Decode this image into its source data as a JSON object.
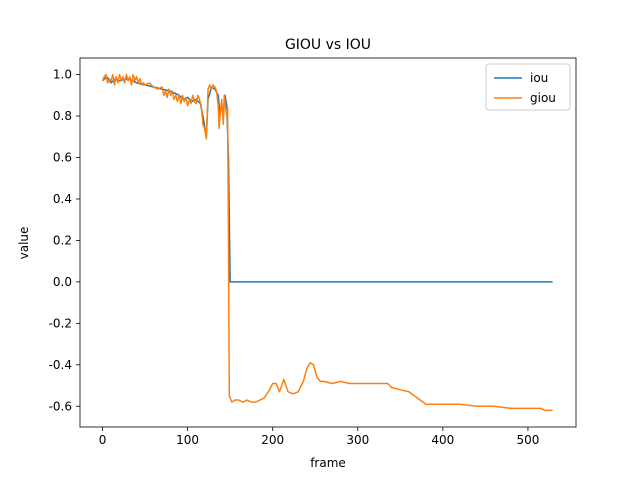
{
  "chart_data": {
    "type": "line",
    "title": "GIOU vs IOU",
    "xlabel": "frame",
    "ylabel": "value",
    "xlim": [
      -26.5,
      556.5
    ],
    "ylim": [
      -0.7,
      1.08
    ],
    "xticks": [
      0,
      100,
      200,
      300,
      400,
      500
    ],
    "yticks": [
      -0.6,
      -0.4,
      -0.2,
      0.0,
      0.2,
      0.4,
      0.6,
      0.8,
      1.0
    ],
    "grid": false,
    "legend_position": "top-right",
    "series": [
      {
        "name": "iou",
        "color": "#1f77b4",
        "points": [
          [
            0,
            0.97
          ],
          [
            5,
            0.99
          ],
          [
            10,
            0.96
          ],
          [
            15,
            0.98
          ],
          [
            20,
            0.97
          ],
          [
            30,
            0.98
          ],
          [
            40,
            0.96
          ],
          [
            50,
            0.95
          ],
          [
            60,
            0.94
          ],
          [
            70,
            0.93
          ],
          [
            80,
            0.92
          ],
          [
            90,
            0.9
          ],
          [
            95,
            0.88
          ],
          [
            100,
            0.89
          ],
          [
            105,
            0.87
          ],
          [
            110,
            0.88
          ],
          [
            115,
            0.86
          ],
          [
            118,
            0.8
          ],
          [
            120,
            0.75
          ],
          [
            122,
            0.7
          ],
          [
            124,
            0.88
          ],
          [
            128,
            0.94
          ],
          [
            132,
            0.93
          ],
          [
            136,
            0.9
          ],
          [
            138,
            0.8
          ],
          [
            140,
            0.86
          ],
          [
            142,
            0.82
          ],
          [
            144,
            0.9
          ],
          [
            146,
            0.85
          ],
          [
            148,
            0.6
          ],
          [
            150,
            0.0
          ],
          [
            200,
            0.0
          ],
          [
            300,
            0.0
          ],
          [
            400,
            0.0
          ],
          [
            529,
            0.0
          ]
        ]
      },
      {
        "name": "giou",
        "color": "#ff7f0e",
        "points": [
          [
            0,
            0.97
          ],
          [
            2,
            0.99
          ],
          [
            4,
            1.0
          ],
          [
            6,
            0.96
          ],
          [
            8,
            0.98
          ],
          [
            10,
            0.97
          ],
          [
            12,
            1.0
          ],
          [
            14,
            0.95
          ],
          [
            16,
            0.99
          ],
          [
            18,
            0.96
          ],
          [
            20,
            1.0
          ],
          [
            22,
            0.97
          ],
          [
            24,
            0.99
          ],
          [
            26,
            0.96
          ],
          [
            28,
            1.0
          ],
          [
            30,
            0.97
          ],
          [
            32,
            0.99
          ],
          [
            34,
            0.95
          ],
          [
            36,
            1.0
          ],
          [
            38,
            0.97
          ],
          [
            40,
            0.99
          ],
          [
            42,
            0.96
          ],
          [
            44,
            0.98
          ],
          [
            46,
            0.95
          ],
          [
            48,
            0.96
          ],
          [
            50,
            0.95
          ],
          [
            55,
            0.96
          ],
          [
            60,
            0.94
          ],
          [
            65,
            0.93
          ],
          [
            70,
            0.94
          ],
          [
            72,
            0.9
          ],
          [
            74,
            0.92
          ],
          [
            76,
            0.89
          ],
          [
            78,
            0.93
          ],
          [
            80,
            0.9
          ],
          [
            82,
            0.92
          ],
          [
            84,
            0.88
          ],
          [
            86,
            0.9
          ],
          [
            88,
            0.87
          ],
          [
            90,
            0.9
          ],
          [
            92,
            0.86
          ],
          [
            94,
            0.9
          ],
          [
            96,
            0.87
          ],
          [
            98,
            0.89
          ],
          [
            100,
            0.85
          ],
          [
            102,
            0.88
          ],
          [
            104,
            0.86
          ],
          [
            106,
            0.9
          ],
          [
            108,
            0.87
          ],
          [
            110,
            0.86
          ],
          [
            112,
            0.9
          ],
          [
            114,
            0.88
          ],
          [
            116,
            0.85
          ],
          [
            118,
            0.76
          ],
          [
            120,
            0.74
          ],
          [
            122,
            0.69
          ],
          [
            123,
            0.8
          ],
          [
            124,
            0.93
          ],
          [
            126,
            0.95
          ],
          [
            128,
            0.93
          ],
          [
            130,
            0.95
          ],
          [
            132,
            0.94
          ],
          [
            134,
            0.92
          ],
          [
            136,
            0.85
          ],
          [
            137,
            0.74
          ],
          [
            138,
            0.8
          ],
          [
            140,
            0.88
          ],
          [
            142,
            0.76
          ],
          [
            143,
            0.9
          ],
          [
            144,
            0.86
          ],
          [
            146,
            0.8
          ],
          [
            147,
            0.84
          ],
          [
            148,
            0.2
          ],
          [
            149,
            -0.55
          ],
          [
            152,
            -0.58
          ],
          [
            156,
            -0.57
          ],
          [
            160,
            -0.57
          ],
          [
            165,
            -0.58
          ],
          [
            170,
            -0.57
          ],
          [
            175,
            -0.58
          ],
          [
            180,
            -0.58
          ],
          [
            185,
            -0.57
          ],
          [
            190,
            -0.56
          ],
          [
            195,
            -0.53
          ],
          [
            200,
            -0.49
          ],
          [
            204,
            -0.49
          ],
          [
            208,
            -0.53
          ],
          [
            213,
            -0.47
          ],
          [
            218,
            -0.53
          ],
          [
            224,
            -0.54
          ],
          [
            230,
            -0.53
          ],
          [
            236,
            -0.48
          ],
          [
            240,
            -0.42
          ],
          [
            244,
            -0.39
          ],
          [
            248,
            -0.4
          ],
          [
            252,
            -0.46
          ],
          [
            256,
            -0.48
          ],
          [
            260,
            -0.48
          ],
          [
            270,
            -0.49
          ],
          [
            280,
            -0.48
          ],
          [
            290,
            -0.49
          ],
          [
            300,
            -0.49
          ],
          [
            320,
            -0.49
          ],
          [
            335,
            -0.49
          ],
          [
            340,
            -0.51
          ],
          [
            350,
            -0.52
          ],
          [
            360,
            -0.53
          ],
          [
            370,
            -0.56
          ],
          [
            380,
            -0.59
          ],
          [
            400,
            -0.59
          ],
          [
            420,
            -0.59
          ],
          [
            440,
            -0.6
          ],
          [
            460,
            -0.6
          ],
          [
            480,
            -0.61
          ],
          [
            500,
            -0.61
          ],
          [
            515,
            -0.61
          ],
          [
            520,
            -0.62
          ],
          [
            529,
            -0.62
          ]
        ]
      }
    ]
  }
}
